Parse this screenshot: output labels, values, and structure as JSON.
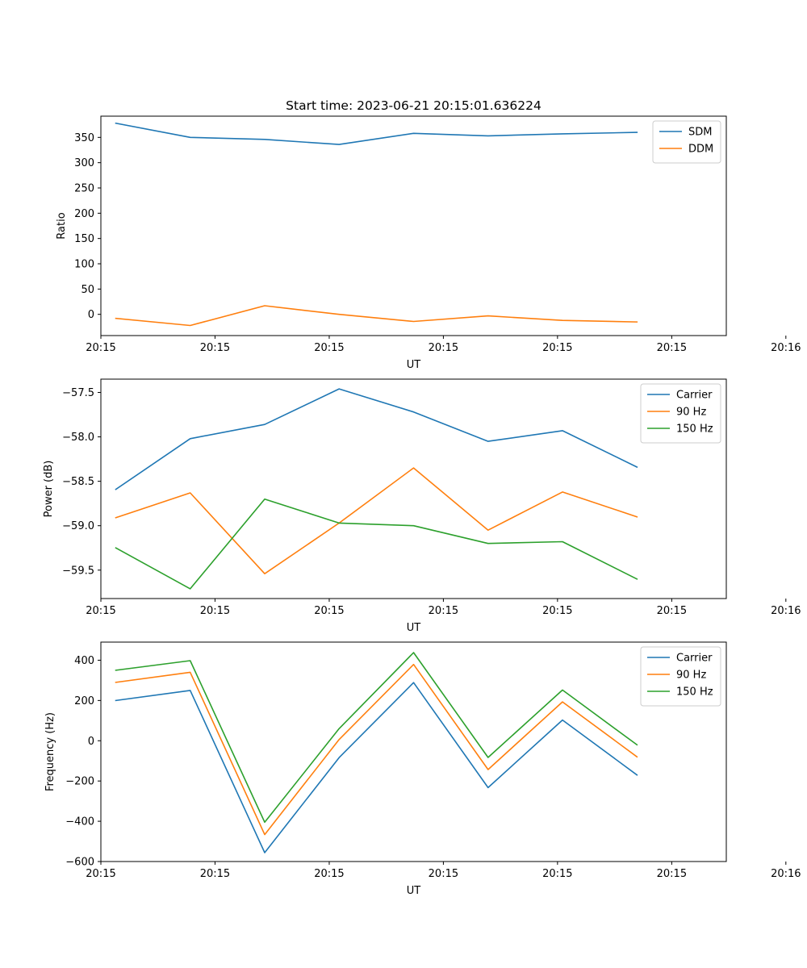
{
  "title": "Start time: 2023-06-21 20:15:01.636224",
  "colors": {
    "c0": "#1f77b4",
    "c1": "#ff7f0e",
    "c2": "#2ca02c"
  },
  "chart_data": [
    {
      "type": "line",
      "title": "Start time: 2023-06-21 20:15:01.636224",
      "xlabel": "UT",
      "ylabel": "Ratio",
      "x": [
        1,
        2,
        3,
        4,
        5,
        6,
        7,
        8
      ],
      "xlim": [
        0.8,
        9.2
      ],
      "ylim": [
        -42,
        392
      ],
      "xticks": [
        {
          "v": 0.8,
          "label": "20:15"
        },
        {
          "v": 2.333,
          "label": "20:15"
        },
        {
          "v": 3.867,
          "label": "20:15"
        },
        {
          "v": 5.4,
          "label": "20:15"
        },
        {
          "v": 6.933,
          "label": "20:15"
        },
        {
          "v": 8.467,
          "label": "20:15"
        },
        {
          "v": 10.0,
          "label": "20:16"
        }
      ],
      "yticks": [
        {
          "v": 0,
          "label": "0"
        },
        {
          "v": 50,
          "label": "50"
        },
        {
          "v": 100,
          "label": "100"
        },
        {
          "v": 150,
          "label": "150"
        },
        {
          "v": 200,
          "label": "200"
        },
        {
          "v": 250,
          "label": "250"
        },
        {
          "v": 300,
          "label": "300"
        },
        {
          "v": 350,
          "label": "350"
        }
      ],
      "legend_position": "top-right",
      "series": [
        {
          "name": "SDM",
          "color": "#1f77b4",
          "values": [
            378,
            350,
            346,
            336,
            358,
            353,
            357,
            360
          ]
        },
        {
          "name": "DDM",
          "color": "#ff7f0e",
          "values": [
            -8,
            -22,
            17,
            0,
            -14,
            -3,
            -12,
            -15
          ]
        }
      ]
    },
    {
      "type": "line",
      "xlabel": "UT",
      "ylabel": "Power (dB)",
      "x": [
        1,
        2,
        3,
        4,
        5,
        6,
        7,
        8
      ],
      "xlim": [
        0.8,
        9.2
      ],
      "ylim": [
        -59.82,
        -57.35
      ],
      "xticks": [
        {
          "v": 0.8,
          "label": "20:15"
        },
        {
          "v": 2.333,
          "label": "20:15"
        },
        {
          "v": 3.867,
          "label": "20:15"
        },
        {
          "v": 5.4,
          "label": "20:15"
        },
        {
          "v": 6.933,
          "label": "20:15"
        },
        {
          "v": 8.467,
          "label": "20:15"
        },
        {
          "v": 10.0,
          "label": "20:16"
        }
      ],
      "yticks": [
        {
          "v": -59.5,
          "label": "−59.5"
        },
        {
          "v": -59.0,
          "label": "−59.0"
        },
        {
          "v": -58.5,
          "label": "−58.5"
        },
        {
          "v": -58.0,
          "label": "−58.0"
        },
        {
          "v": -57.5,
          "label": "−57.5"
        }
      ],
      "legend_position": "top-right",
      "series": [
        {
          "name": "Carrier",
          "color": "#1f77b4",
          "values": [
            -58.59,
            -58.02,
            -57.86,
            -57.46,
            -57.72,
            -58.05,
            -57.93,
            -58.34
          ]
        },
        {
          "name": "90 Hz",
          "color": "#ff7f0e",
          "values": [
            -58.91,
            -58.63,
            -59.54,
            -58.97,
            -58.35,
            -59.05,
            -58.62,
            -58.9
          ]
        },
        {
          "name": "150 Hz",
          "color": "#2ca02c",
          "values": [
            -59.25,
            -59.71,
            -58.7,
            -58.97,
            -59.0,
            -59.2,
            -59.18,
            -59.6
          ]
        }
      ]
    },
    {
      "type": "line",
      "xlabel": "UT",
      "ylabel": "Frequency (Hz)",
      "x": [
        1,
        2,
        3,
        4,
        5,
        6,
        7,
        8
      ],
      "xlim": [
        0.8,
        9.2
      ],
      "ylim": [
        -600,
        490
      ],
      "xticks": [
        {
          "v": 0.8,
          "label": "20:15"
        },
        {
          "v": 2.333,
          "label": "20:15"
        },
        {
          "v": 3.867,
          "label": "20:15"
        },
        {
          "v": 5.4,
          "label": "20:15"
        },
        {
          "v": 6.933,
          "label": "20:15"
        },
        {
          "v": 8.467,
          "label": "20:15"
        },
        {
          "v": 10.0,
          "label": "20:16"
        }
      ],
      "yticks": [
        {
          "v": -600,
          "label": "−600"
        },
        {
          "v": -400,
          "label": "−400"
        },
        {
          "v": -200,
          "label": "−200"
        },
        {
          "v": 0,
          "label": "0"
        },
        {
          "v": 200,
          "label": "200"
        },
        {
          "v": 400,
          "label": "400"
        }
      ],
      "legend_position": "top-right",
      "series": [
        {
          "name": "Carrier",
          "color": "#1f77b4",
          "values": [
            200,
            250,
            -556,
            -84,
            289,
            -233,
            103,
            -170
          ]
        },
        {
          "name": "90 Hz",
          "color": "#ff7f0e",
          "values": [
            290,
            340,
            -466,
            6,
            379,
            -143,
            193,
            -80
          ]
        },
        {
          "name": "150 Hz",
          "color": "#2ca02c",
          "values": [
            350,
            398,
            -405,
            60,
            438,
            -83,
            252,
            -20
          ]
        }
      ]
    }
  ]
}
